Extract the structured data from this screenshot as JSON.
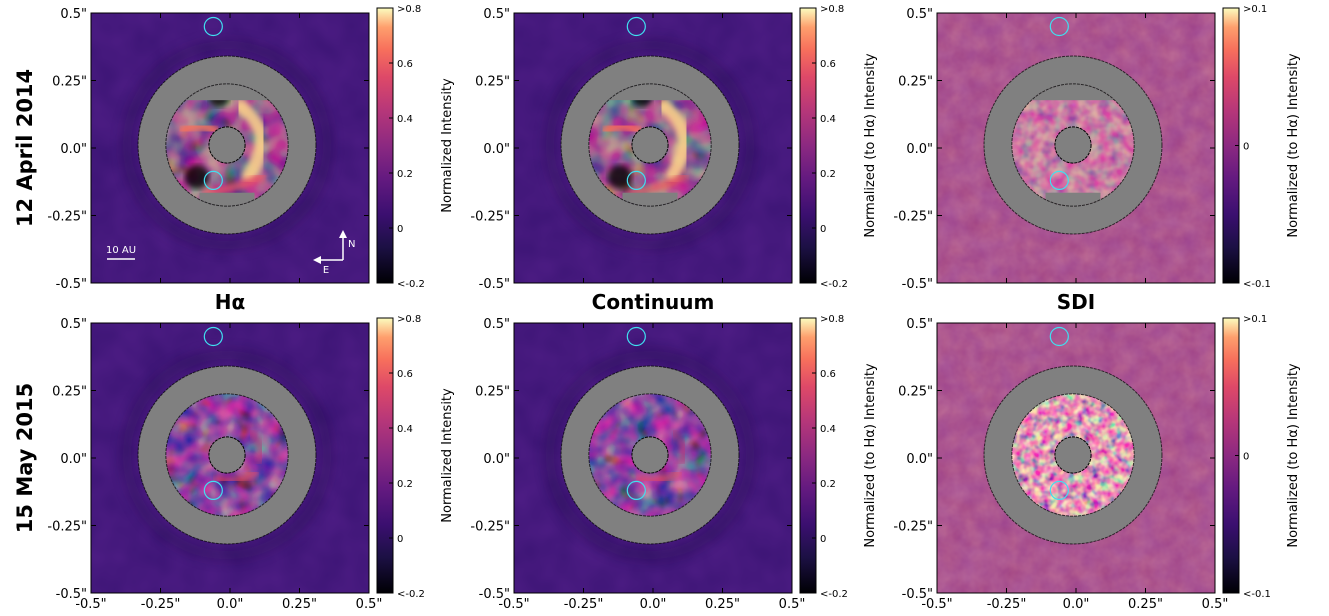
{
  "figure": {
    "rows": [
      {
        "label": "12 April 2014"
      },
      {
        "label": "15 May 2015"
      }
    ],
    "columns": [
      {
        "title": "Hα",
        "colorbar": {
          "label": "Normalized Intensity",
          "ticks": [
            ">0.8",
            "0.6",
            "0.4",
            "0.2",
            "0",
            "<-0.2"
          ],
          "range": [
            -0.2,
            0.8
          ]
        }
      },
      {
        "title": "Continuum",
        "colorbar": {
          "label": "Normalized (to Hα) Intensity",
          "ticks": [
            ">0.8",
            "0.6",
            "0.4",
            "0.2",
            "0",
            "<-0.2"
          ],
          "range": [
            -0.2,
            0.8
          ]
        }
      },
      {
        "title": "SDI",
        "colorbar": {
          "label": "Normalized (to Hα) Intensity",
          "ticks": [
            ">0.1",
            "0",
            "<-0.1"
          ],
          "range": [
            -0.1,
            0.1
          ]
        }
      }
    ],
    "x_ticks": [
      "-0.5\"",
      "-0.25\"",
      "0.0\"",
      "0.25\"",
      "0.5\""
    ],
    "y_ticks": [
      "0.5\"",
      "0.25\"",
      "0.0\"",
      "-0.25\"",
      "-0.5\""
    ],
    "axis_range_arcsec": [
      -0.5,
      0.5
    ],
    "annotations": {
      "scale_bar": "10 AU",
      "compass_north": "N",
      "compass_east": "E"
    },
    "colors": {
      "colormap": [
        "#000004",
        "#3b0f70",
        "#8c2981",
        "#de4968",
        "#fe9f6d",
        "#fcfdbf"
      ],
      "mask": "#808080",
      "marker_circle": "#40e0f0"
    },
    "marker_circles_arcsec": [
      {
        "x": -0.06,
        "y": 0.45
      },
      {
        "x": -0.06,
        "y": -0.12
      }
    ],
    "mask_arcsec": {
      "inner_hole": 0.065,
      "dark_hole_inner": 0.18,
      "dark_hole_outer": 0.22,
      "ring_inner": 0.22,
      "ring_outer": 0.32
    }
  }
}
